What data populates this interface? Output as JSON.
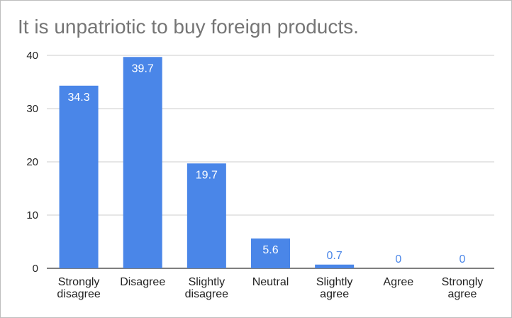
{
  "chart_data": {
    "type": "bar",
    "title": "It is unpatriotic to buy foreign products.",
    "xlabel": "",
    "ylabel": "",
    "categories": [
      [
        "Strongly",
        "disagree"
      ],
      [
        "Disagree"
      ],
      [
        "Slightly",
        "disagree"
      ],
      [
        "Neutral"
      ],
      [
        "Slightly",
        "agree"
      ],
      [
        "Agree"
      ],
      [
        "Strongly",
        "agree"
      ]
    ],
    "values": [
      34.3,
      39.7,
      19.7,
      5.6,
      0.7,
      0,
      0
    ],
    "data_labels": [
      "34.3",
      "39.7",
      "19.7",
      "5.6",
      "0.7",
      "0",
      "0"
    ],
    "ylim": [
      0,
      40
    ],
    "yticks": [
      0,
      10,
      20,
      30,
      40
    ],
    "grid": true,
    "legend": "none",
    "bar_color": "#4a86e8",
    "label_color": "#4a86e8",
    "grid_color": "#cccccc"
  }
}
